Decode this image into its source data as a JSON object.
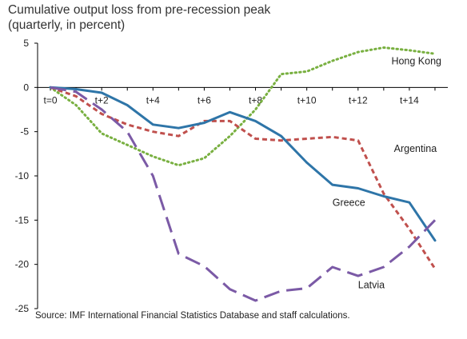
{
  "chart_data": {
    "type": "line",
    "title": "Cumulative output loss from pre-recession peak",
    "subtitle": "(quarterly, in percent)",
    "source": "Source: IMF International Financial Statistics Database and staff calculations.",
    "x": [
      0,
      1,
      2,
      3,
      4,
      5,
      6,
      7,
      8,
      9,
      10,
      11,
      12,
      13,
      14,
      15
    ],
    "xticks": [
      "t=0",
      "t+2",
      "t+4",
      "t+6",
      "t+8",
      "t+10",
      "t+12",
      "t+14"
    ],
    "xtick_positions": [
      0,
      2,
      4,
      6,
      8,
      10,
      12,
      14
    ],
    "yticks": [
      5,
      0,
      -5,
      -10,
      -15,
      -20,
      -25
    ],
    "ylim": [
      -25,
      5
    ],
    "xlim": [
      -0.5,
      15.5
    ],
    "grid": false,
    "legend": "inline labels",
    "series": [
      {
        "name": "Hong Kong",
        "color": "#79B041",
        "dash": "dotted",
        "values": [
          0,
          -2.0,
          -5.2,
          -6.5,
          -7.8,
          -8.8,
          -8.0,
          -5.5,
          -2.5,
          1.5,
          1.8,
          3.0,
          4.0,
          4.5,
          4.2,
          3.8
        ]
      },
      {
        "name": "Argentina",
        "color": "#C0504D",
        "dash": "dashed",
        "values": [
          0,
          -1.0,
          -3.0,
          -4.2,
          -5.0,
          -5.5,
          -3.8,
          -3.8,
          -5.8,
          -6.0,
          -5.8,
          -5.6,
          -6.0,
          -12.0,
          -16.0,
          -20.5
        ]
      },
      {
        "name": "Greece",
        "color": "#2E75A8",
        "dash": "solid",
        "values": [
          0,
          -0.2,
          -0.6,
          -2.0,
          -4.2,
          -4.6,
          -4.0,
          -2.8,
          -3.8,
          -5.5,
          -8.5,
          -11.0,
          -11.4,
          -12.3,
          -13.0,
          -17.3
        ]
      },
      {
        "name": "Latvia",
        "color": "#7B5AA6",
        "dash": "longdash",
        "values": [
          0,
          -0.5,
          -2.5,
          -5.0,
          -10.0,
          -18.8,
          -20.2,
          -22.8,
          -24.1,
          -23.0,
          -22.7,
          -20.3,
          -21.3,
          -20.3,
          -18.0,
          -15.0
        ]
      }
    ],
    "labels": [
      {
        "series": "Hong Kong",
        "text": "Hong Kong",
        "x": 13.3,
        "y": 2.6
      },
      {
        "series": "Argentina",
        "text": "Argentina",
        "x": 13.4,
        "y": -7.3
      },
      {
        "series": "Greece",
        "text": "Greece",
        "x": 11.0,
        "y": -13.4
      },
      {
        "series": "Latvia",
        "text": "Latvia",
        "x": 12.0,
        "y": -22.7
      }
    ]
  }
}
